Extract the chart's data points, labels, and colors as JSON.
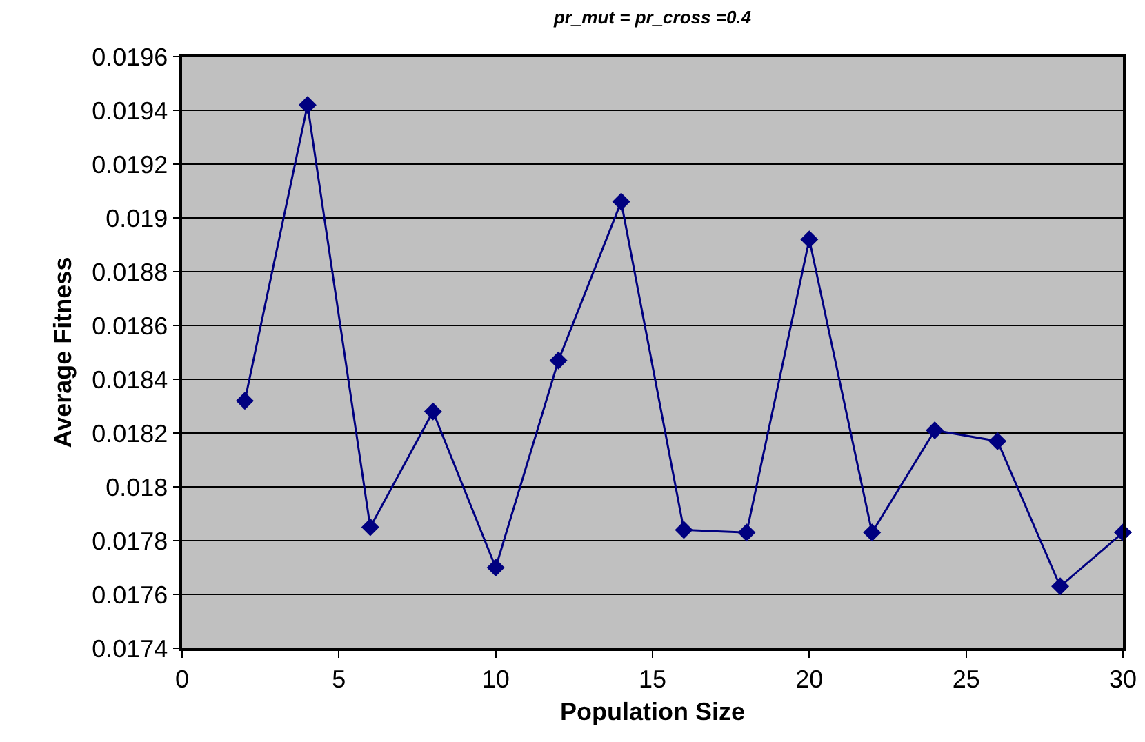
{
  "chart_data": {
    "type": "line",
    "title": "pr_mut = pr_cross =0.4",
    "xlabel": "Population Size",
    "ylabel": "Average Fitness",
    "x": [
      2,
      4,
      6,
      8,
      10,
      12,
      14,
      16,
      18,
      20,
      22,
      24,
      26,
      28,
      30
    ],
    "series": [
      {
        "color": "#000080",
        "values": [
          0.01832,
          0.01942,
          0.01785,
          0.01828,
          0.0177,
          0.01847,
          0.01906,
          0.01784,
          0.01783,
          0.01892,
          0.01783,
          0.01821,
          0.01817,
          0.01763,
          0.01783
        ]
      }
    ],
    "xlim": [
      0,
      30
    ],
    "xticks": [
      0,
      5,
      10,
      15,
      20,
      25,
      30
    ],
    "ylim": [
      0.0174,
      0.0196
    ],
    "yticks": [
      0.0174,
      0.0176,
      0.0178,
      0.018,
      0.0182,
      0.0184,
      0.0186,
      0.0188,
      0.019,
      0.0192,
      0.0194,
      0.0196
    ],
    "grid": "y",
    "marker": "diamond",
    "line_style": "solid"
  }
}
